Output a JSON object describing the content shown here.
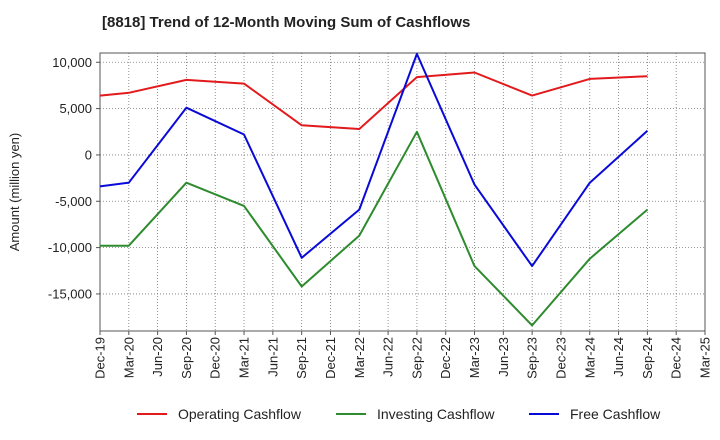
{
  "chart_data": {
    "type": "line",
    "title": "[8818]  Trend of 12-Month Moving Sum of Cashflows",
    "xlabel": "",
    "ylabel": "Amount (million yen)",
    "ylim": [
      -19000,
      11000
    ],
    "yticks": [
      10000,
      5000,
      0,
      -5000,
      -10000,
      -15000
    ],
    "ytick_labels": [
      "10,000",
      "5,000",
      "0",
      "-5,000",
      "-10,000",
      "-15,000"
    ],
    "categories": [
      "Dec-19",
      "Mar-20",
      "Jun-20",
      "Sep-20",
      "Dec-20",
      "Mar-21",
      "Jun-21",
      "Sep-21",
      "Dec-21",
      "Mar-22",
      "Jun-22",
      "Sep-22",
      "Dec-22",
      "Mar-23",
      "Jun-23",
      "Sep-23",
      "Dec-23",
      "Mar-24",
      "Jun-24",
      "Sep-24",
      "Dec-24",
      "Mar-25"
    ],
    "grid": true,
    "legend_position": "bottom",
    "series": [
      {
        "name": "Operating Cashflow",
        "color": "#e31a1c",
        "values": [
          6400,
          6700,
          null,
          8100,
          null,
          7700,
          null,
          3200,
          null,
          2800,
          null,
          8400,
          null,
          8900,
          null,
          6400,
          null,
          8200,
          null,
          8500,
          null,
          null
        ]
      },
      {
        "name": "Investing Cashflow",
        "color": "#2e8b2e",
        "values": [
          -9800,
          -9800,
          null,
          -3000,
          null,
          -5500,
          null,
          -14200,
          null,
          -8700,
          null,
          2500,
          null,
          -12000,
          null,
          -18400,
          null,
          -11200,
          null,
          -5900,
          null,
          null
        ]
      },
      {
        "name": "Free Cashflow",
        "color": "#0a0ad8",
        "values": [
          -3400,
          -3000,
          null,
          5100,
          null,
          2200,
          null,
          -11100,
          null,
          -5900,
          null,
          10900,
          null,
          -3200,
          null,
          -12000,
          null,
          -3000,
          null,
          2600,
          null,
          null
        ]
      }
    ]
  }
}
